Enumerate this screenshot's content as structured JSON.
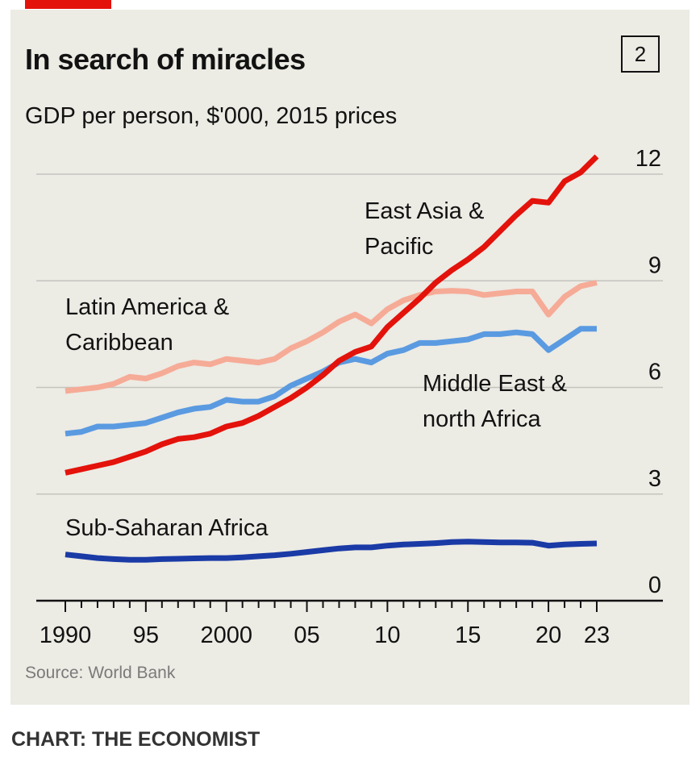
{
  "header": {
    "number": "2"
  },
  "footer": {
    "credit": "CHART: THE ECONOMIST"
  },
  "colors": {
    "east_asia": "#e3120b",
    "latin_america": "#f6ab97",
    "middle_east": "#5a9ae1",
    "sub_saharan": "#1a3aa6",
    "accent": "#e3120b",
    "background": "#ecebe4"
  },
  "chart_data": {
    "type": "line",
    "title": "In search of miracles",
    "subtitle": "GDP per person, $'000, 2015 prices",
    "source": "Source: World Bank",
    "ylim": [
      0,
      12
    ],
    "xlim": [
      1990,
      2023
    ],
    "y_ticks": [
      "0",
      "3",
      "6",
      "9",
      "12"
    ],
    "x_ticks": [
      "1990",
      "95",
      "2000",
      "05",
      "10",
      "15",
      "20",
      "23"
    ],
    "grid": true,
    "x": [
      1990,
      1991,
      1992,
      1993,
      1994,
      1995,
      1996,
      1997,
      1998,
      1999,
      2000,
      2001,
      2002,
      2003,
      2004,
      2005,
      2006,
      2007,
      2008,
      2009,
      2010,
      2011,
      2012,
      2013,
      2014,
      2015,
      2016,
      2017,
      2018,
      2019,
      2020,
      2021,
      2022,
      2023
    ],
    "series": [
      {
        "key": "latin",
        "name": "Latin America & Caribbean",
        "label_lines": [
          "Latin America &",
          "Caribbean"
        ],
        "values": [
          5.9,
          5.95,
          6.0,
          6.1,
          6.3,
          6.25,
          6.4,
          6.6,
          6.7,
          6.65,
          6.8,
          6.75,
          6.7,
          6.8,
          7.1,
          7.3,
          7.55,
          7.85,
          8.05,
          7.8,
          8.2,
          8.45,
          8.6,
          8.7,
          8.72,
          8.7,
          8.6,
          8.65,
          8.7,
          8.7,
          8.05,
          8.55,
          8.85,
          8.95
        ]
      },
      {
        "key": "mena",
        "name": "Middle East & north Africa",
        "label_lines": [
          "Middle East &",
          "north Africa"
        ],
        "values": [
          4.7,
          4.75,
          4.9,
          4.9,
          4.95,
          5.0,
          5.15,
          5.3,
          5.4,
          5.45,
          5.65,
          5.6,
          5.6,
          5.75,
          6.05,
          6.25,
          6.45,
          6.7,
          6.8,
          6.7,
          6.95,
          7.05,
          7.25,
          7.25,
          7.3,
          7.35,
          7.5,
          7.5,
          7.55,
          7.5,
          7.05,
          7.35,
          7.65,
          7.65
        ]
      },
      {
        "key": "eastasia",
        "name": "East Asia & Pacific",
        "label_lines": [
          "East Asia &",
          "Pacific"
        ],
        "values": [
          3.6,
          3.7,
          3.8,
          3.9,
          4.05,
          4.2,
          4.4,
          4.55,
          4.6,
          4.7,
          4.9,
          5.0,
          5.2,
          5.45,
          5.7,
          6.0,
          6.35,
          6.75,
          7.0,
          7.15,
          7.7,
          8.1,
          8.5,
          8.95,
          9.3,
          9.6,
          9.95,
          10.4,
          10.85,
          11.25,
          11.2,
          11.8,
          12.05,
          12.5
        ]
      },
      {
        "key": "ssa",
        "name": "Sub-Saharan Africa",
        "label_lines": [
          "Sub-Saharan Africa"
        ],
        "values": [
          1.3,
          1.25,
          1.2,
          1.17,
          1.15,
          1.15,
          1.17,
          1.18,
          1.19,
          1.2,
          1.2,
          1.22,
          1.25,
          1.28,
          1.32,
          1.37,
          1.42,
          1.47,
          1.5,
          1.5,
          1.55,
          1.58,
          1.6,
          1.62,
          1.65,
          1.66,
          1.65,
          1.64,
          1.64,
          1.63,
          1.55,
          1.58,
          1.6,
          1.61
        ]
      }
    ]
  }
}
